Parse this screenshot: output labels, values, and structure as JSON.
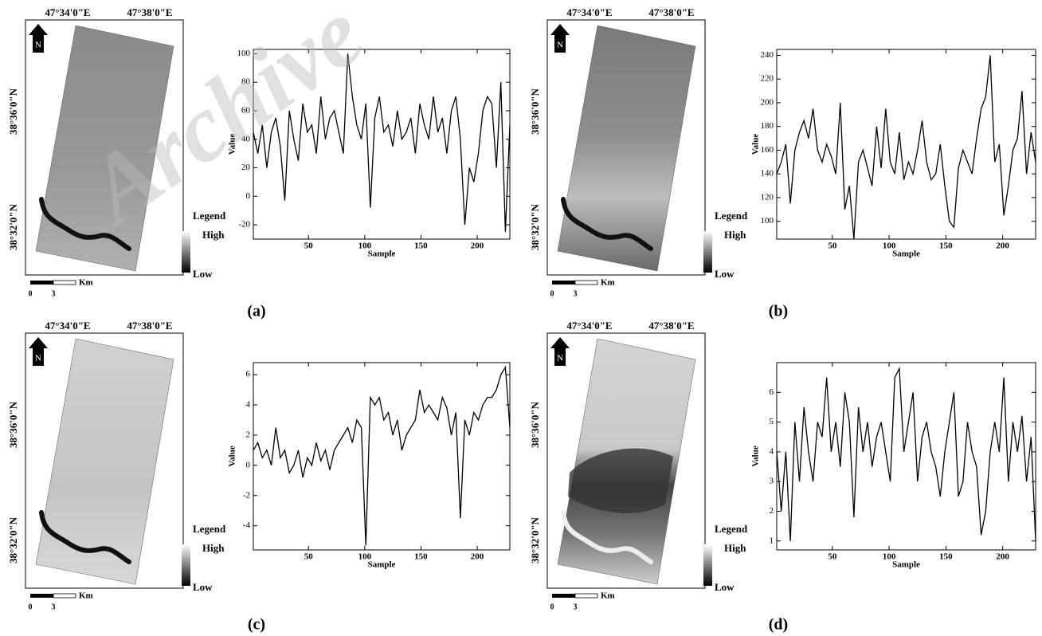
{
  "watermark": "Archive",
  "panels": [
    {
      "label": "(a)",
      "map": {
        "lon_labels": [
          "47°34'0\"E",
          "47°38'0\"E"
        ],
        "lat_labels": [
          "38°36'0\"N",
          "38°32'0\"N"
        ],
        "north": "N",
        "legend_title": "Legend",
        "legend_high": "High",
        "legend_low": "Low",
        "scale_unit": "Km",
        "scale_ticks": [
          "0",
          "3"
        ]
      }
    },
    {
      "label": "(b)",
      "map": {
        "lon_labels": [
          "47°34'0\"E",
          "47°38'0\"E"
        ],
        "lat_labels": [
          "38°36'0\"N",
          "38°32'0\"N"
        ],
        "north": "N",
        "legend_title": "Legend",
        "legend_high": "High",
        "legend_low": "Low",
        "scale_unit": "Km",
        "scale_ticks": [
          "0",
          "3"
        ]
      }
    },
    {
      "label": "(c)",
      "map": {
        "lon_labels": [
          "47°34'0\"E",
          "47°38'0\"E"
        ],
        "lat_labels": [
          "38°36'0\"N",
          "38°32'0\"N"
        ],
        "north": "N",
        "legend_title": "Legend",
        "legend_high": "High",
        "legend_low": "Low",
        "scale_unit": "Km",
        "scale_ticks": [
          "0",
          "3"
        ]
      }
    },
    {
      "label": "(d)",
      "map": {
        "lon_labels": [
          "47°34'0\"E",
          "47°38'0\"E"
        ],
        "lat_labels": [
          "38°36'0\"N",
          "38°32'0\"N"
        ],
        "north": "N",
        "legend_title": "Legend",
        "legend_high": "High",
        "legend_low": "Low",
        "scale_unit": "Km",
        "scale_ticks": [
          "0",
          "3"
        ]
      }
    }
  ],
  "chart_data": [
    {
      "type": "line",
      "xlabel": "Sample",
      "ylabel": "Value",
      "color": "#000000",
      "x": [
        1,
        5,
        9,
        13,
        17,
        21,
        25,
        29,
        33,
        37,
        41,
        45,
        49,
        53,
        57,
        61,
        65,
        69,
        73,
        77,
        81,
        85,
        89,
        93,
        97,
        101,
        105,
        109,
        113,
        117,
        121,
        125,
        129,
        133,
        137,
        141,
        145,
        149,
        153,
        157,
        161,
        165,
        169,
        173,
        177,
        181,
        185,
        189,
        193,
        197,
        201,
        205,
        209,
        213,
        217,
        221,
        225,
        229
      ],
      "values": [
        45,
        30,
        50,
        20,
        45,
        55,
        35,
        -3,
        60,
        40,
        25,
        65,
        45,
        50,
        30,
        70,
        40,
        55,
        60,
        45,
        30,
        100,
        70,
        50,
        40,
        65,
        -8,
        55,
        70,
        45,
        50,
        35,
        60,
        40,
        45,
        55,
        30,
        65,
        50,
        40,
        70,
        45,
        55,
        30,
        60,
        70,
        40,
        -20,
        20,
        10,
        30,
        60,
        70,
        65,
        20,
        80,
        -25,
        50
      ],
      "xlim": [
        1,
        229
      ],
      "xticks": [
        50,
        100,
        150,
        200
      ],
      "ylim": [
        -30,
        103
      ],
      "yticks": [
        -20,
        0,
        20,
        40,
        60,
        80,
        100
      ]
    },
    {
      "type": "line",
      "xlabel": "Sample",
      "ylabel": "Value",
      "color": "#000000",
      "x": [
        1,
        5,
        9,
        13,
        17,
        21,
        25,
        29,
        33,
        37,
        41,
        45,
        49,
        53,
        57,
        61,
        65,
        69,
        73,
        77,
        81,
        85,
        89,
        93,
        97,
        101,
        105,
        109,
        113,
        117,
        121,
        125,
        129,
        133,
        137,
        141,
        145,
        149,
        153,
        157,
        161,
        165,
        169,
        173,
        177,
        181,
        185,
        189,
        193,
        197,
        201,
        205,
        209,
        213,
        217,
        221,
        225,
        229
      ],
      "values": [
        140,
        150,
        165,
        115,
        160,
        175,
        185,
        170,
        195,
        160,
        150,
        165,
        155,
        140,
        200,
        110,
        130,
        85,
        150,
        160,
        145,
        130,
        180,
        145,
        195,
        150,
        140,
        175,
        135,
        150,
        140,
        160,
        185,
        150,
        135,
        140,
        165,
        130,
        100,
        95,
        145,
        160,
        150,
        140,
        170,
        195,
        205,
        240,
        150,
        165,
        105,
        130,
        160,
        170,
        210,
        140,
        175,
        150
      ],
      "xlim": [
        1,
        229
      ],
      "xticks": [
        50,
        100,
        150,
        200
      ],
      "ylim": [
        85,
        245
      ],
      "yticks": [
        100,
        120,
        140,
        160,
        180,
        200,
        220,
        240
      ]
    },
    {
      "type": "line",
      "xlabel": "Sample",
      "ylabel": "Value",
      "color": "#000000",
      "x": [
        1,
        5,
        9,
        13,
        17,
        21,
        25,
        29,
        33,
        37,
        41,
        45,
        49,
        53,
        57,
        61,
        65,
        69,
        73,
        77,
        81,
        85,
        89,
        93,
        97,
        101,
        105,
        109,
        113,
        117,
        121,
        125,
        129,
        133,
        137,
        141,
        145,
        149,
        153,
        157,
        161,
        165,
        169,
        173,
        177,
        181,
        185,
        189,
        193,
        197,
        201,
        205,
        209,
        213,
        217,
        221,
        225,
        229
      ],
      "values": [
        1,
        1.5,
        0.5,
        1,
        0,
        2.5,
        0.5,
        1,
        -0.5,
        0,
        1,
        -0.8,
        0.5,
        0,
        1.5,
        0.3,
        1,
        -0.3,
        1,
        1.5,
        2,
        2.5,
        1.5,
        3,
        2.5,
        -5.3,
        4.5,
        4,
        4.5,
        3,
        3.5,
        2,
        3,
        1,
        2,
        2.5,
        3,
        5,
        3.5,
        4,
        3.5,
        3,
        4.5,
        3.8,
        2,
        3.5,
        -3.5,
        3,
        2,
        3.5,
        3,
        4,
        4.5,
        4.5,
        5,
        6,
        6.5,
        2.5
      ],
      "xlim": [
        1,
        229
      ],
      "xticks": [
        50,
        100,
        150,
        200
      ],
      "ylim": [
        -5.6,
        6.8
      ],
      "yticks": [
        -4,
        -2,
        0,
        2,
        4,
        6
      ]
    },
    {
      "type": "line",
      "xlabel": "Sample",
      "ylabel": "Value",
      "color": "#000000",
      "x": [
        1,
        5,
        9,
        13,
        17,
        21,
        25,
        29,
        33,
        37,
        41,
        45,
        49,
        53,
        57,
        61,
        65,
        69,
        73,
        77,
        81,
        85,
        89,
        93,
        97,
        101,
        105,
        109,
        113,
        117,
        121,
        125,
        129,
        133,
        137,
        141,
        145,
        149,
        153,
        157,
        161,
        165,
        169,
        173,
        177,
        181,
        185,
        189,
        193,
        197,
        201,
        205,
        209,
        213,
        217,
        221,
        225,
        229
      ],
      "values": [
        4,
        2,
        4,
        1,
        5,
        3,
        5.5,
        4,
        3,
        5,
        4.5,
        6.5,
        4,
        5,
        3.5,
        6,
        5,
        1.8,
        5.5,
        4,
        5,
        3.5,
        4.5,
        5,
        4,
        3,
        6.5,
        6.8,
        4,
        5,
        6,
        3,
        4.5,
        5,
        4,
        3.5,
        2.5,
        4,
        5,
        6,
        2.5,
        3,
        5,
        4,
        3.5,
        1.2,
        2,
        4,
        5,
        4,
        6.5,
        3,
        5,
        4,
        5.2,
        3,
        4.5,
        1
      ],
      "xlim": [
        1,
        229
      ],
      "xticks": [
        50,
        100,
        150,
        200
      ],
      "ylim": [
        0.7,
        7
      ],
      "yticks": [
        1,
        2,
        3,
        4,
        5,
        6
      ]
    }
  ]
}
